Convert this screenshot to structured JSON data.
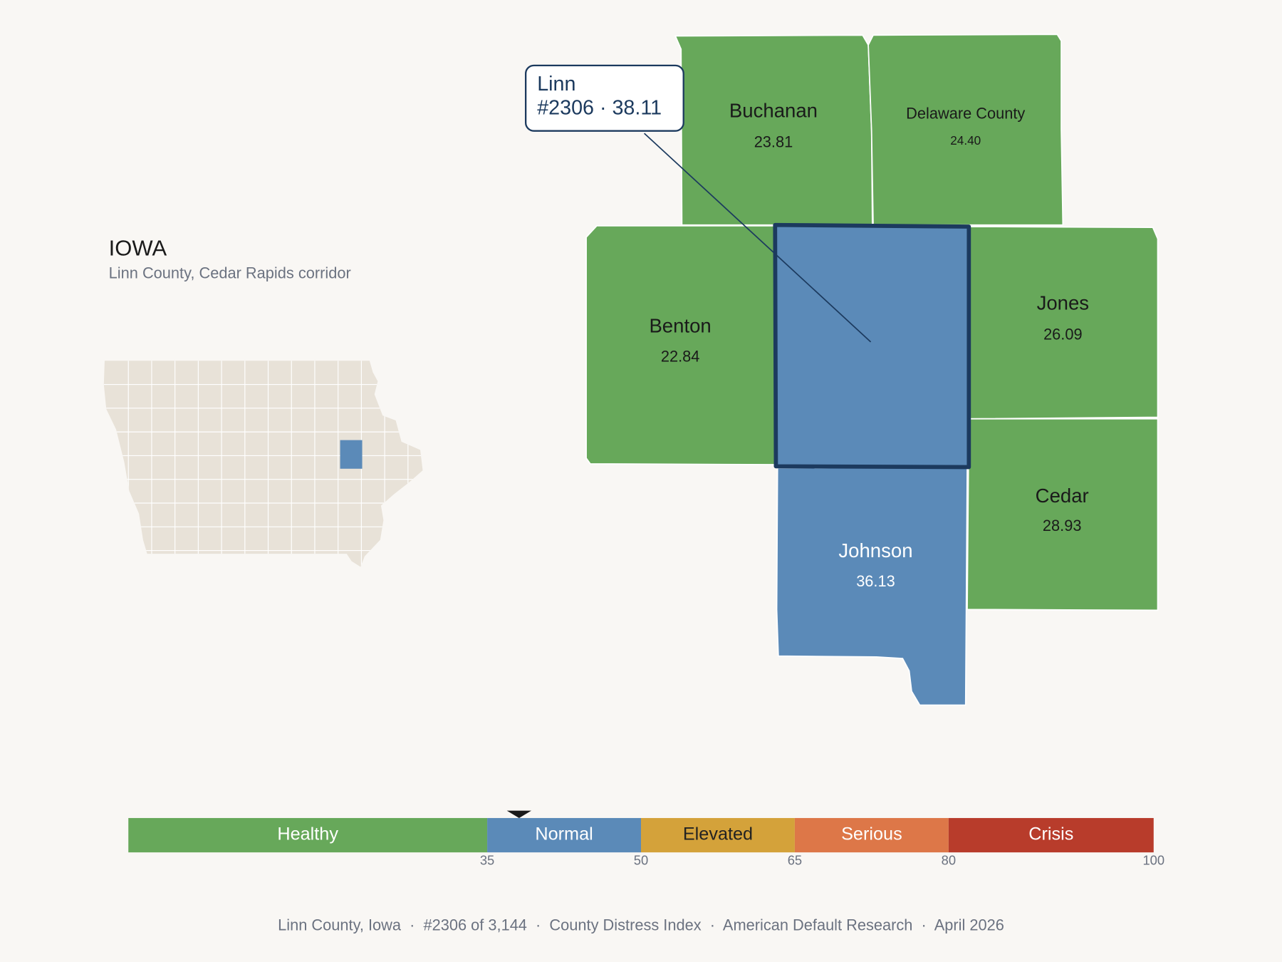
{
  "inset": {
    "title": "IOWA",
    "subtitle": "Linn County, Cedar Rapids corridor"
  },
  "selected": {
    "name": "Linn",
    "detail": "#2306 · 38.11",
    "score": 38.11
  },
  "counties": [
    {
      "name": "Buchanan",
      "score": {
        "value": 23.81,
        "label": "23.81"
      }
    },
    {
      "name": "Delaware County",
      "score": {
        "value": 24.4,
        "label": "24.40"
      }
    },
    {
      "name": "Benton",
      "score": {
        "value": 22.84,
        "label": "22.84"
      }
    },
    {
      "name": "Jones",
      "score": {
        "value": 26.09,
        "label": "26.09"
      }
    },
    {
      "name": "Cedar",
      "score": {
        "value": 28.93,
        "label": "28.93"
      }
    },
    {
      "name": "Johnson",
      "score": {
        "value": 36.13,
        "label": "36.13"
      }
    }
  ],
  "scale": {
    "range": [
      0,
      100
    ],
    "ticks": [
      35,
      50,
      65,
      80,
      100
    ],
    "bands": [
      {
        "label": "Healthy",
        "color": "#67a85a",
        "text_color": "#ffffff"
      },
      {
        "label": "Normal",
        "color": "#5b8ab8",
        "text_color": "#ffffff"
      },
      {
        "label": "Elevated",
        "color": "#d4a23a",
        "text_color": "#222222"
      },
      {
        "label": "Serious",
        "color": "#dd7748",
        "text_color": "#ffffff"
      },
      {
        "label": "Crisis",
        "color": "#b83c2b",
        "text_color": "#ffffff"
      }
    ]
  },
  "footer": "Linn County, Iowa  ·  #2306 of 3,144  ·  County Distress Index  ·  American Default Research  ·  April 2026"
}
